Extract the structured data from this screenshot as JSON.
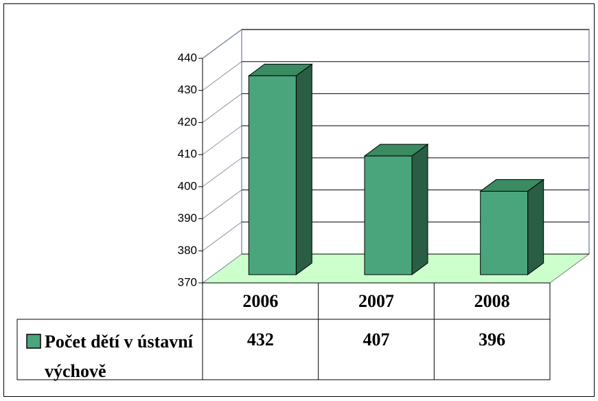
{
  "chart_data": {
    "type": "bar3d",
    "categories": [
      "2006",
      "2007",
      "2008"
    ],
    "series": [
      {
        "name": "Počet dětí v ústavní výchově",
        "color": "#4aa57d",
        "values": [
          432,
          407,
          396
        ]
      }
    ],
    "ylim": [
      370,
      440
    ],
    "yticks": [
      370,
      380,
      390,
      400,
      410,
      420,
      430,
      440
    ],
    "grid": true
  }
}
